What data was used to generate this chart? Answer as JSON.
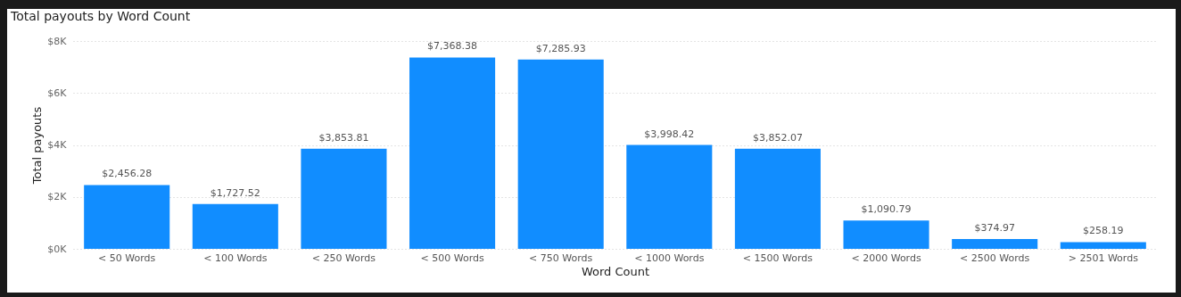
{
  "chart_data": {
    "type": "bar",
    "title": "Total payouts by Word Count",
    "xlabel": "Word Count",
    "ylabel": "Total payouts",
    "categories": [
      "< 50 Words",
      "< 100 Words",
      "< 250 Words",
      "< 500 Words",
      "< 750 Words",
      "< 1000 Words",
      "< 1500 Words",
      "< 2000 Words",
      "< 2500 Words",
      "> 2501 Words"
    ],
    "values": [
      2456.28,
      1727.52,
      3853.81,
      7368.38,
      7285.93,
      3998.42,
      3852.07,
      1090.79,
      374.97,
      258.19
    ],
    "value_labels": [
      "$2,456.28",
      "$1,727.52",
      "$3,853.81",
      "$7,368.38",
      "$7,285.93",
      "$3,998.42",
      "$3,852.07",
      "$1,090.79",
      "$374.97",
      "$258.19"
    ],
    "color": "#118dff",
    "ylim": [
      0,
      8000
    ],
    "yticks": [
      {
        "value": 0,
        "label": "$0K"
      },
      {
        "value": 2000,
        "label": "$2K"
      },
      {
        "value": 4000,
        "label": "$4K"
      },
      {
        "value": 6000,
        "label": "$6K"
      },
      {
        "value": 8000,
        "label": "$8K"
      }
    ],
    "grid": "y"
  }
}
